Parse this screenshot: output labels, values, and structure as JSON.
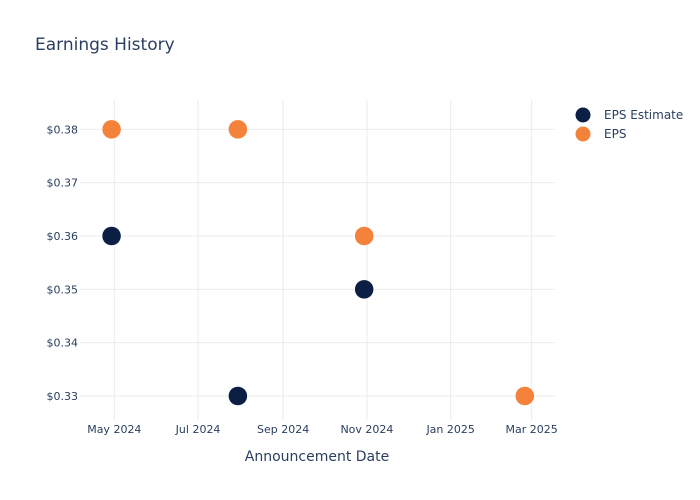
{
  "chart_data": {
    "type": "scatter",
    "title": "Earnings History",
    "xlabel": "Announcement Date",
    "ylabel": "",
    "x_ticks": [
      {
        "date": "2024-05-01",
        "label": "May 2024"
      },
      {
        "date": "2024-07-01",
        "label": "Jul 2024"
      },
      {
        "date": "2024-09-01",
        "label": "Sep 2024"
      },
      {
        "date": "2024-11-01",
        "label": "Nov 2024"
      },
      {
        "date": "2025-01-01",
        "label": "Jan 2025"
      },
      {
        "date": "2025-03-01",
        "label": "Mar 2025"
      }
    ],
    "y_ticks": [
      {
        "value": 0.33,
        "label": "$0.33"
      },
      {
        "value": 0.34,
        "label": "$0.34"
      },
      {
        "value": 0.35,
        "label": "$0.35"
      },
      {
        "value": 0.36,
        "label": "$0.36"
      },
      {
        "value": 0.37,
        "label": "$0.37"
      },
      {
        "value": 0.38,
        "label": "$0.38"
      }
    ],
    "xlim": [
      "2024-04-06",
      "2025-03-18"
    ],
    "ylim": [
      0.3255,
      0.3855
    ],
    "grid": true,
    "legend": "top-right",
    "series": [
      {
        "name": "EPS Estimate",
        "color": "#0b1f45",
        "points": [
          {
            "x": "2024-04-29",
            "y": 0.36
          },
          {
            "x": "2024-07-30",
            "y": 0.33
          },
          {
            "x": "2024-10-30",
            "y": 0.35
          },
          {
            "x": "2025-02-24",
            "y": 0.33
          }
        ]
      },
      {
        "name": "EPS",
        "color": "#f5823a",
        "points": [
          {
            "x": "2024-04-29",
            "y": 0.38
          },
          {
            "x": "2024-07-30",
            "y": 0.38
          },
          {
            "x": "2024-10-30",
            "y": 0.36
          },
          {
            "x": "2025-02-24",
            "y": 0.33
          }
        ]
      }
    ]
  }
}
